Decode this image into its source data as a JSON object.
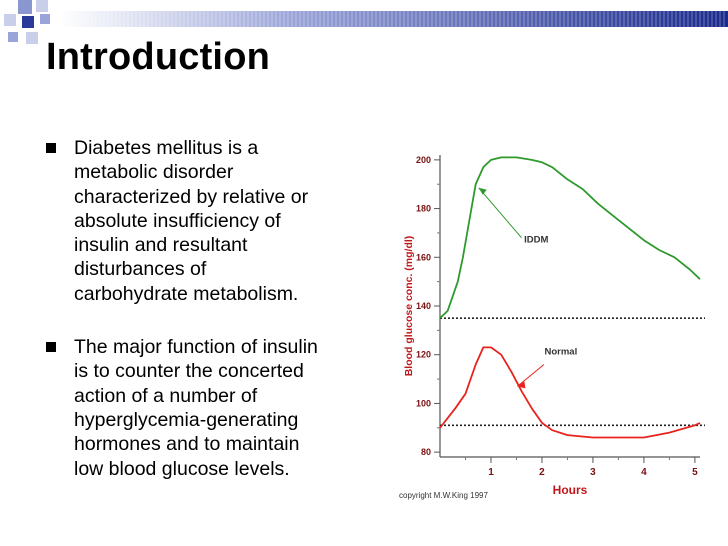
{
  "slide": {
    "title": "Introduction",
    "bullets": [
      {
        "text": "Diabetes mellitus is a\nmetabolic disorder\ncharacterized by relative or\nabsolute insufficiency of\ninsulin and resultant\ndisturbances of\ncarbohydrate metabolism."
      },
      {
        "text": "The major function of insulin\nis to counter the concerted\naction of a number of\nhyperglycemia-generating\nhormones and to maintain\nlow blood glucose levels."
      }
    ]
  },
  "colors": {
    "accent_blue": "#1a2a8c",
    "iddm_line": "#2e9a2e",
    "normal_line": "#e8231f",
    "axis_label": "#c0181a",
    "tick_label": "#7a1010"
  },
  "chart_data": {
    "type": "line",
    "xlabel": "Hours",
    "ylabel": "Blood glucose conc. (mg/dl)",
    "xlim": [
      0,
      5.1
    ],
    "ylim": [
      78,
      202
    ],
    "x_ticks": [
      1,
      2,
      3,
      4,
      5
    ],
    "y_ticks": [
      80,
      100,
      120,
      140,
      160,
      180,
      200
    ],
    "grid": false,
    "reference_lines": [
      135,
      91
    ],
    "credit": "copyright M.W.King 1997",
    "series": [
      {
        "name": "IDDM",
        "color": "#2e9a2e",
        "x": [
          0,
          0.15,
          0.25,
          0.35,
          0.45,
          0.55,
          0.7,
          0.85,
          1.0,
          1.2,
          1.5,
          1.8,
          2.0,
          2.2,
          2.5,
          2.8,
          3.1,
          3.4,
          3.7,
          4.0,
          4.3,
          4.6,
          4.9,
          5.1
        ],
        "y": [
          135,
          138,
          144,
          150,
          160,
          172,
          190,
          197,
          200,
          201,
          201,
          200,
          199,
          197,
          192,
          188,
          182,
          177,
          172,
          167,
          163,
          160,
          155,
          151
        ]
      },
      {
        "name": "Normal",
        "color": "#e8231f",
        "x": [
          0,
          0.3,
          0.5,
          0.7,
          0.85,
          1.0,
          1.2,
          1.4,
          1.6,
          1.8,
          2.0,
          2.2,
          2.5,
          3.0,
          3.5,
          4.0,
          4.5,
          5.0,
          5.1
        ],
        "y": [
          90,
          98,
          104,
          116,
          123,
          123,
          120,
          113,
          105,
          98,
          92,
          89,
          87,
          86,
          86,
          86,
          88,
          91,
          92
        ]
      }
    ],
    "annotations": [
      {
        "text": "IDDM",
        "series": "IDDM"
      },
      {
        "text": "Normal",
        "series": "Normal"
      }
    ]
  }
}
